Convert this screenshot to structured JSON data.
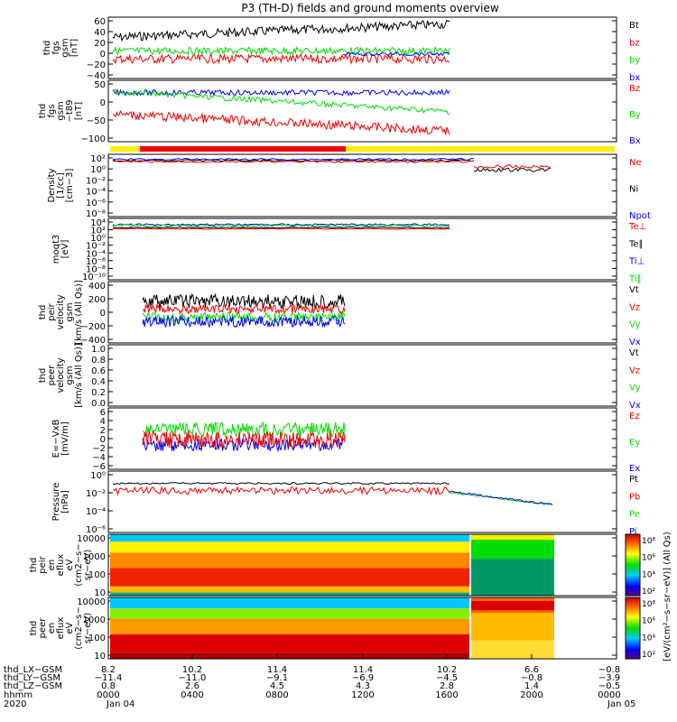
{
  "title": "P3 (TH-D) fields and ground moments overview",
  "colors": {
    "black": "#000000",
    "red": "#ee0000",
    "green": "#00dd00",
    "blue": "#0000ee",
    "yellow": "#ffee00"
  },
  "chart_data": [
    {
      "type": "line",
      "ylabel": [
        "thd",
        "fgs",
        "gsm",
        "[nT]"
      ],
      "yticks": [
        "60",
        "40",
        "20",
        "0",
        "−20",
        "−40"
      ],
      "yrange": [
        -40,
        60
      ],
      "legend": [
        {
          "name": "Bt",
          "color": "black"
        },
        {
          "name": "bz",
          "color": "red"
        },
        {
          "name": "by",
          "color": "green"
        },
        {
          "name": "bx",
          "color": "blue"
        }
      ]
    },
    {
      "type": "line",
      "ylabel": [
        "thd",
        "fgs",
        "gsm",
        "−t89",
        "[nT]"
      ],
      "yticks": [
        "50",
        "0",
        "−50",
        "−100"
      ],
      "yrange": [
        -120,
        50
      ],
      "legend": [
        {
          "name": "Bz",
          "color": "red"
        },
        {
          "name": "By",
          "color": "green"
        },
        {
          "name": "Bx",
          "color": "blue"
        }
      ]
    },
    {
      "type": "line",
      "ylabel": [
        "Density",
        "[1/cc]",
        "[cm−3]"
      ],
      "yticks": [
        "10²",
        "10⁰",
        "10⁻²",
        "10⁻⁴",
        "10⁻⁶",
        "10⁻⁸"
      ],
      "log": true,
      "legend": [
        {
          "name": "Ne",
          "color": "red"
        },
        {
          "name": "Ni",
          "color": "black"
        },
        {
          "name": "Npot",
          "color": "blue"
        }
      ]
    },
    {
      "type": "line",
      "ylabel": [
        "moqt3",
        "[eV]"
      ],
      "yticks": [
        "10⁴",
        "10²",
        "10⁰",
        "10⁻²",
        "10⁻⁴",
        "10⁻⁶",
        "10⁻⁸",
        "10⁻¹⁰"
      ],
      "log": true,
      "legend": [
        {
          "name": "Te⊥",
          "color": "red"
        },
        {
          "name": "Te∥",
          "color": "black"
        },
        {
          "name": "Ti⊥",
          "color": "blue"
        },
        {
          "name": "Ti∥",
          "color": "green"
        }
      ]
    },
    {
      "type": "line",
      "ylabel": [
        "thd",
        "peir",
        "velocity",
        "gsm",
        "[km/s (All Qs)]"
      ],
      "yticks": [
        "400",
        "200",
        "0",
        "−200",
        "−400"
      ],
      "yrange": [
        -400,
        400
      ],
      "legend": [
        {
          "name": "Vt",
          "color": "black"
        },
        {
          "name": "Vz",
          "color": "red"
        },
        {
          "name": "Vy",
          "color": "green"
        },
        {
          "name": "Vx",
          "color": "blue"
        }
      ]
    },
    {
      "type": "line",
      "ylabel": [
        "thd",
        "peer",
        "velocity",
        "gsm",
        "[km/s (All Qs)]"
      ],
      "yticks": [
        "1.0",
        "0.8",
        "0.6",
        "0.4",
        "0.2",
        "0.0"
      ],
      "yrange": [
        0,
        1
      ],
      "legend": [
        {
          "name": "Vt",
          "color": "black"
        },
        {
          "name": "Vz",
          "color": "red"
        },
        {
          "name": "Vy",
          "color": "green"
        },
        {
          "name": "Vx",
          "color": "blue"
        }
      ]
    },
    {
      "type": "line",
      "ylabel": [
        "E=−VxB",
        "[mV/m]"
      ],
      "yticks": [
        "6",
        "4",
        "2",
        "0",
        "−2",
        "−4",
        "−6"
      ],
      "yrange": [
        -6,
        6
      ],
      "legend": [
        {
          "name": "Ez",
          "color": "red"
        },
        {
          "name": "Ey",
          "color": "green"
        },
        {
          "name": "Ex",
          "color": "blue"
        }
      ]
    },
    {
      "type": "line",
      "ylabel": [
        "Pressure",
        "[nPa]"
      ],
      "yticks": [
        "10⁰",
        "10⁻²",
        "10⁻⁴",
        "10⁻⁶"
      ],
      "log": true,
      "legend": [
        {
          "name": "Pt",
          "color": "black"
        },
        {
          "name": "Pb",
          "color": "red"
        },
        {
          "name": "Pe",
          "color": "green"
        },
        {
          "name": "Pi",
          "color": "blue"
        }
      ]
    },
    {
      "type": "heatmap",
      "ylabel": [
        "thd",
        "peir",
        "en",
        "eflux",
        "eV",
        "(cm2−s−",
        "sr−eV)"
      ],
      "yticks": [
        "10000",
        "1000",
        "100",
        "10"
      ],
      "log": true
    },
    {
      "type": "heatmap",
      "ylabel": [
        "thd",
        "peer",
        "en",
        "eflux",
        "eV",
        "(cm2−s−",
        "sr−eV)"
      ],
      "yticks": [
        "10000",
        "1000",
        "100",
        "10"
      ],
      "log": true
    }
  ],
  "colorbar": {
    "ticks": [
      "10⁸",
      "10⁶",
      "10⁴",
      "10²"
    ],
    "label": "[eV/(cm²−s−sr−eV)] (All Qs)"
  },
  "xaxis": {
    "row_labels": [
      "thd_LX−GSM",
      "thd_LY−GSM",
      "thd_LZ−GSM",
      "hhmm",
      "2020"
    ],
    "columns": [
      {
        "v": [
          "8.2",
          "−11.4",
          "0.8",
          "0000",
          "Jan 04"
        ]
      },
      {
        "v": [
          "10.2",
          "−11.0",
          "2.6",
          "0400",
          ""
        ]
      },
      {
        "v": [
          "11.4",
          "−9.1",
          "4.5",
          "0800",
          ""
        ]
      },
      {
        "v": [
          "11.4",
          "−6.9",
          "4.3",
          "1200",
          ""
        ]
      },
      {
        "v": [
          "10.2",
          "−4.5",
          "2.8",
          "1600",
          ""
        ]
      },
      {
        "v": [
          "6.6",
          "−0.8",
          "1.4",
          "2000",
          ""
        ]
      },
      {
        "v": [
          "−0.8",
          "−3.9",
          "−0.5",
          "0000",
          "Jan 05"
        ]
      }
    ]
  }
}
